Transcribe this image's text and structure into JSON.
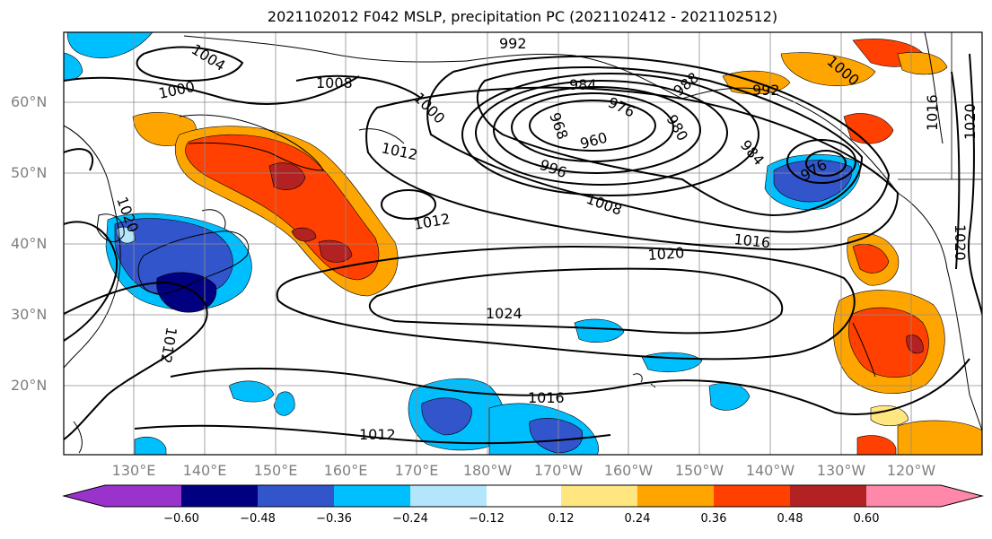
{
  "title": "2021102012 F042 MSLP, precipitation PC (2021102412 - 2021102512)",
  "latitude_labels": [
    "60°N",
    "50°N",
    "40°N",
    "30°N",
    "20°N"
  ],
  "longitude_labels": [
    "130°E",
    "140°E",
    "150°E",
    "160°E",
    "170°E",
    "180°W",
    "170°W",
    "160°W",
    "150°W",
    "140°W",
    "130°W",
    "120°W"
  ],
  "isobar_labels": [
    "1004",
    "992",
    "1000",
    "1008",
    "984",
    "976",
    "968",
    "1000",
    "960",
    "980",
    "988",
    "992",
    "1000",
    "1016",
    "1020",
    "1012",
    "996",
    "984",
    "976",
    "1008",
    "1012",
    "1016",
    "1020",
    "1024",
    "1016",
    "1012",
    "1012",
    "1020",
    "1020"
  ],
  "colorbar": {
    "tick_labels": [
      "−0.60",
      "−0.48",
      "−0.36",
      "−0.24",
      "−0.12",
      "0.12",
      "0.24",
      "0.36",
      "0.48",
      "0.60"
    ],
    "colors": [
      "#9933cc",
      "#000080",
      "#3355cc",
      "#00bfff",
      "#b3e5fc",
      "#ffffff",
      "#ffe680",
      "#ffa500",
      "#ff4000",
      "#b22222",
      "#ff88aa"
    ]
  }
}
